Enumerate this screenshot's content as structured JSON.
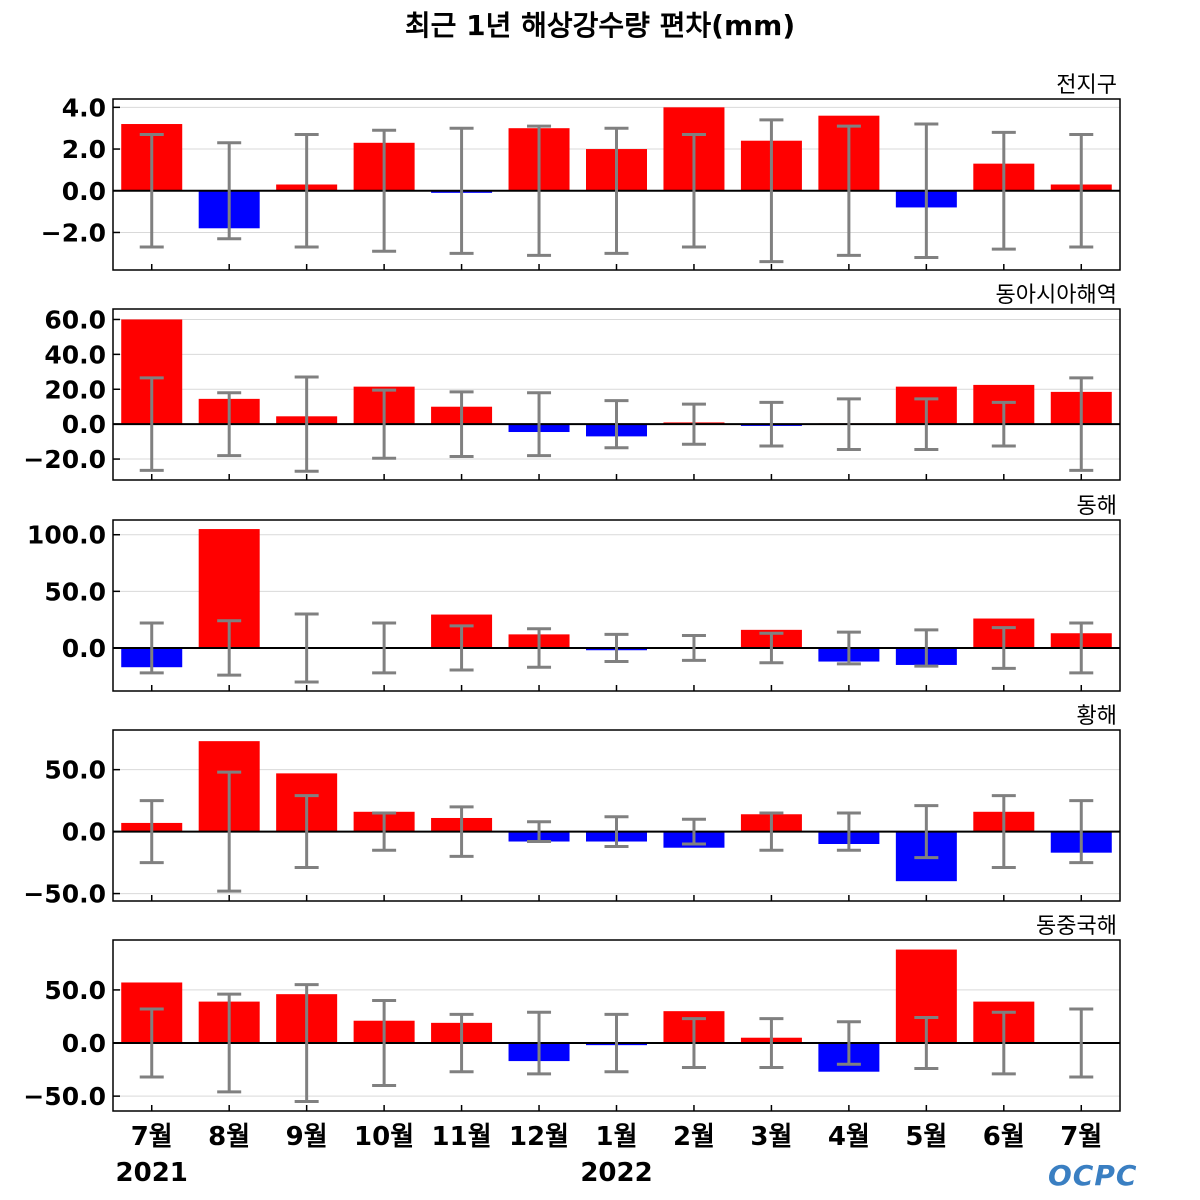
{
  "title": "최근 1년 해상강수량 편차(mm)",
  "logo_text": "OCPC",
  "colors": {
    "positive": "#ff0000",
    "negative": "#0000ff",
    "errorbar": "#808080",
    "zeroline": "#000000",
    "grid": "#d9d9d9",
    "logo": "#3a7fc2"
  },
  "x_axis": {
    "categories": [
      "7월",
      "8월",
      "9월",
      "10월",
      "11월",
      "12월",
      "1월",
      "2월",
      "3월",
      "4월",
      "5월",
      "6월",
      "7월"
    ],
    "year_labels": [
      {
        "index": 0,
        "text": "2021"
      },
      {
        "index": 6,
        "text": "2022"
      }
    ]
  },
  "chart_data": [
    {
      "type": "bar",
      "title": "전지구",
      "categories": [
        "7월",
        "8월",
        "9월",
        "10월",
        "11월",
        "12월",
        "1월",
        "2월",
        "3월",
        "4월",
        "5월",
        "6월",
        "7월"
      ],
      "values": [
        3.2,
        -1.8,
        0.3,
        2.3,
        -0.1,
        3.0,
        2.0,
        4.0,
        2.4,
        3.6,
        -0.8,
        1.3,
        0.3
      ],
      "error": [
        2.7,
        2.3,
        2.7,
        2.9,
        3.0,
        3.1,
        3.0,
        2.7,
        3.4,
        3.1,
        3.2,
        2.8,
        2.7
      ],
      "ylim": [
        -3.8,
        4.4
      ],
      "yticks": [
        4.0,
        2.0,
        0.0,
        -2.0
      ],
      "ytick_labels": [
        "4.0",
        "2.0",
        "0.0",
        "−2.0"
      ],
      "grid": true
    },
    {
      "type": "bar",
      "title": "동아시아해역",
      "categories": [
        "7월",
        "8월",
        "9월",
        "10월",
        "11월",
        "12월",
        "1월",
        "2월",
        "3월",
        "4월",
        "5월",
        "6월",
        "7월"
      ],
      "values": [
        60.0,
        14.5,
        4.5,
        21.5,
        10.0,
        -4.5,
        -7.0,
        1.0,
        -1.0,
        0.5,
        21.5,
        22.5,
        18.5
      ],
      "error": [
        26.5,
        18.0,
        27.0,
        19.5,
        18.5,
        18.0,
        13.5,
        11.5,
        12.5,
        14.5,
        14.5,
        12.5,
        26.5
      ],
      "ylim": [
        -32,
        66
      ],
      "yticks": [
        60.0,
        40.0,
        20.0,
        0.0,
        -20.0
      ],
      "ytick_labels": [
        "60.0",
        "40.0",
        "20.0",
        "0.0",
        "−20.0"
      ],
      "grid": true
    },
    {
      "type": "bar",
      "title": "동해",
      "categories": [
        "7월",
        "8월",
        "9월",
        "10월",
        "11월",
        "12월",
        "1월",
        "2월",
        "3월",
        "4월",
        "5월",
        "6월",
        "7월"
      ],
      "values": [
        -17.0,
        105.0,
        -1.0,
        -1.0,
        29.5,
        12.0,
        -2.0,
        -1.0,
        16.0,
        -12.0,
        -15.0,
        26.0,
        13.0
      ],
      "error": [
        22.0,
        24.0,
        30.0,
        22.0,
        19.5,
        17.0,
        12.0,
        11.0,
        13.0,
        14.0,
        16.0,
        18.0,
        22.0
      ],
      "ylim": [
        -38,
        113
      ],
      "yticks": [
        100.0,
        50.0,
        0.0
      ],
      "ytick_labels": [
        "100.0",
        "50.0",
        "0.0"
      ],
      "grid": true
    },
    {
      "type": "bar",
      "title": "황해",
      "categories": [
        "7월",
        "8월",
        "9월",
        "10월",
        "11월",
        "12월",
        "1월",
        "2월",
        "3월",
        "4월",
        "5월",
        "6월",
        "7월"
      ],
      "values": [
        7.0,
        73.0,
        47.0,
        16.0,
        11.0,
        -8.0,
        -8.0,
        -13.0,
        14.0,
        -10.0,
        -40.0,
        16.0,
        -17.0
      ],
      "error": [
        25.0,
        48.0,
        29.0,
        15.0,
        20.0,
        8.0,
        12.0,
        10.0,
        15.0,
        15.0,
        21.0,
        29.0,
        25.0
      ],
      "ylim": [
        -56,
        82
      ],
      "yticks": [
        50.0,
        0.0,
        -50.0
      ],
      "ytick_labels": [
        "50.0",
        "0.0",
        "−50.0"
      ],
      "grid": true
    },
    {
      "type": "bar",
      "title": "동중국해",
      "categories": [
        "7월",
        "8월",
        "9월",
        "10월",
        "11월",
        "12월",
        "1월",
        "2월",
        "3월",
        "4월",
        "5월",
        "6월",
        "7월"
      ],
      "values": [
        57.0,
        39.0,
        46.0,
        21.0,
        19.0,
        -17.0,
        -2.0,
        30.0,
        5.0,
        -27.0,
        88.0,
        39.0,
        -1.0
      ],
      "error": [
        32.0,
        46.0,
        55.0,
        40.0,
        27.0,
        29.0,
        27.0,
        23.0,
        23.0,
        20.0,
        24.0,
        29.0,
        32.0
      ],
      "ylim": [
        -64,
        97
      ],
      "yticks": [
        50.0,
        0.0,
        -50.0
      ],
      "ytick_labels": [
        "50.0",
        "0.0",
        "−50.0"
      ],
      "grid": true
    }
  ]
}
